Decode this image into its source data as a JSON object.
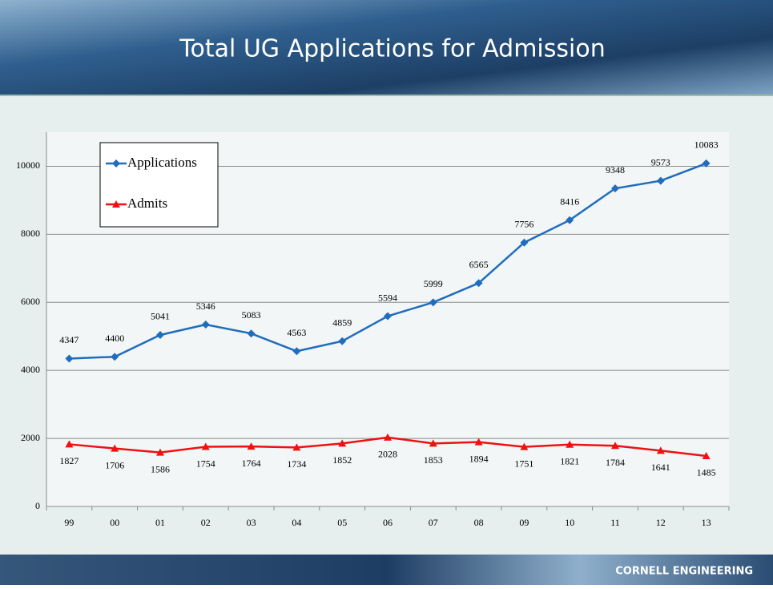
{
  "chart_data": {
    "type": "line",
    "title": "Total UG Applications for Admission",
    "footer": "CORNELL ENGINEERING",
    "categories": [
      "99",
      "00",
      "01",
      "02",
      "03",
      "04",
      "05",
      "06",
      "07",
      "08",
      "09",
      "10",
      "11",
      "12",
      "13"
    ],
    "series": [
      {
        "name": "Applications",
        "color": "#1f6dbd",
        "marker": "diamond",
        "values": [
          4347,
          4400,
          5041,
          5346,
          5083,
          4563,
          4859,
          5594,
          5999,
          6565,
          7756,
          8416,
          9348,
          9573,
          10083
        ]
      },
      {
        "name": "Admits",
        "color": "#ee1111",
        "marker": "triangle",
        "values": [
          1827,
          1706,
          1586,
          1754,
          1764,
          1734,
          1852,
          2028,
          1853,
          1894,
          1751,
          1821,
          1784,
          1641,
          1485
        ]
      }
    ],
    "ylim": [
      0,
      11000
    ],
    "yticks": [
      0,
      2000,
      4000,
      6000,
      8000,
      10000
    ],
    "grid": true,
    "legend": "top-left"
  }
}
